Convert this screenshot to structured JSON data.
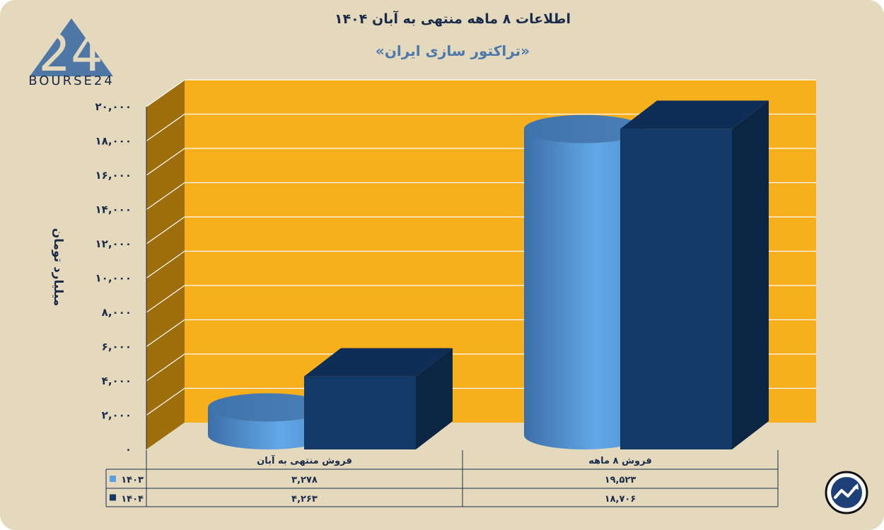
{
  "header": {
    "title": "اطلاعات ۸ ماهه منتهی به آبان ۱۴۰۴",
    "subtitle": "«تراکتور سازی ایران»"
  },
  "logo": {
    "text": "BOURSE24",
    "mark": "24"
  },
  "icons": {
    "brand": "chart-trend-icon"
  },
  "colors": {
    "background": "#e5d9bd",
    "plot": "#f7b01b",
    "wall_side": "#9f6e0c",
    "series_1403": "#5aa0e0",
    "series_1404": "#133a66"
  },
  "chart_data": {
    "type": "bar",
    "title": "اطلاعات ۸ ماهه منتهی به آبان ۱۴۰۴",
    "subtitle": "«تراکتور سازی ایران»",
    "ylabel": "میلیارد تومان",
    "ylim": [
      0,
      20000
    ],
    "yticks": [
      0,
      2000,
      4000,
      6000,
      8000,
      10000,
      12000,
      14000,
      16000,
      18000,
      20000
    ],
    "ytick_labels": [
      "۰",
      "۲,۰۰۰",
      "۴,۰۰۰",
      "۶,۰۰۰",
      "۸,۰۰۰",
      "۱۰,۰۰۰",
      "۱۲,۰۰۰",
      "۱۴,۰۰۰",
      "۱۶,۰۰۰",
      "۱۸,۰۰۰",
      "۲۰,۰۰۰"
    ],
    "grid": true,
    "categories": [
      "فروش منتهی به  آبان",
      "فروش ۸  ماهه"
    ],
    "series": [
      {
        "name": "۱۴۰۳",
        "values": [
          3278,
          19523
        ],
        "labels": [
          "۳,۲۷۸",
          "۱۹,۵۲۳"
        ],
        "color": "#5aa0e0",
        "shape": "cylinder"
      },
      {
        "name": "۱۴۰۴",
        "values": [
          4263,
          18706
        ],
        "labels": [
          "۴,۲۶۳",
          "۱۸,۷۰۶"
        ],
        "color": "#133a66",
        "shape": "box"
      }
    ],
    "legend": "data-table"
  }
}
